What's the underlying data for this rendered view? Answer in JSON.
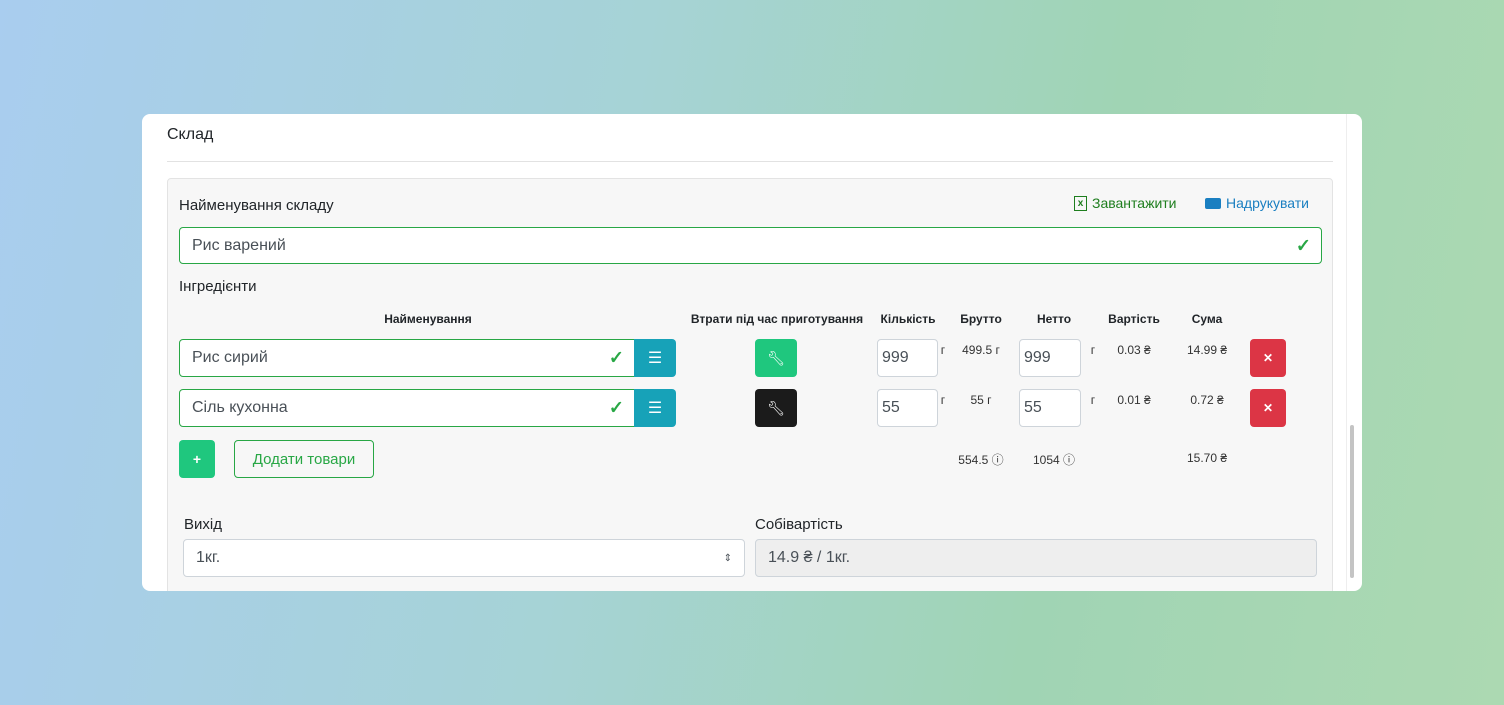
{
  "card": {
    "title": "Склад"
  },
  "form": {
    "name_label": "Найменування складу",
    "name_value": "Рис варений",
    "download_label": "Завантажити",
    "print_label": "Надрукувати",
    "ingredients_label": "Інгредієнти"
  },
  "table": {
    "headers": {
      "name": "Найменування",
      "losses": "Втрати під час приготування",
      "qty": "Кількість",
      "gross": "Брутто",
      "net": "Нетто",
      "cost": "Вартість",
      "sum": "Сума"
    },
    "rows": [
      {
        "name": "Рис сирий",
        "losses_active": true,
        "qty": "999",
        "unit": "г",
        "gross": "499.5 г",
        "net": "999",
        "net_unit": "г",
        "cost": "0.03 ₴",
        "sum": "14.99 ₴"
      },
      {
        "name": "Сіль кухонна",
        "losses_active": false,
        "qty": "55",
        "unit": "г",
        "gross": "55 г",
        "net": "55",
        "net_unit": "г",
        "cost": "0.01 ₴",
        "sum": "0.72 ₴"
      }
    ],
    "totals": {
      "gross": "554.5",
      "net": "1054",
      "sum": "15.70 ₴"
    }
  },
  "actions": {
    "add_symbol": "+",
    "add_products_label": "Додати товари"
  },
  "output": {
    "label": "Вихід",
    "value": "1кг."
  },
  "costing": {
    "label": "Собівартість",
    "value": "14.9 ₴ / 1кг."
  },
  "colors": {
    "green": "#28a745",
    "teal": "#17a2b8",
    "success_btn": "#1fc77e",
    "danger": "#dc3545",
    "dark": "#1b1b1b"
  }
}
